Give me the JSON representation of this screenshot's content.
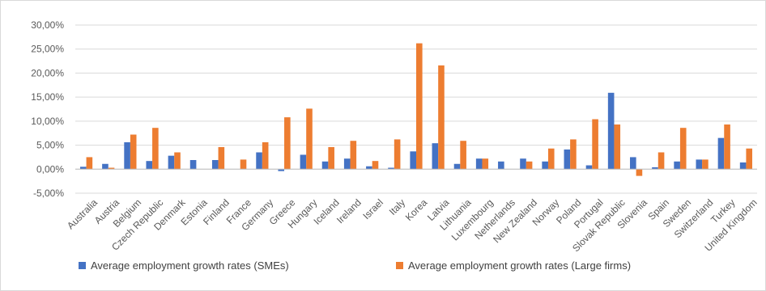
{
  "chart_data": {
    "type": "bar",
    "title": "",
    "xlabel": "",
    "ylabel": "",
    "ylim": [
      -5,
      30
    ],
    "y_ticks": [
      "-5,00%",
      "0,00%",
      "5,00%",
      "10,00%",
      "15,00%",
      "20,00%",
      "25,00%",
      "30,00%"
    ],
    "grid": true,
    "legend_position": "bottom",
    "categories": [
      "Australia",
      "Austria",
      "Belgium",
      "Czech Republic",
      "Denmark",
      "Estonia",
      "Finland",
      "France",
      "Germany",
      "Greece",
      "Hungary",
      "Iceland",
      "Ireland",
      "Israel",
      "Italy",
      "Korea",
      "Latvia",
      "Lithuania",
      "Luxembourg",
      "Netherlands",
      "New Zealand",
      "Norway",
      "Poland",
      "Portugal",
      "Slovak Republic",
      "Slovenia",
      "Spain",
      "Sweden",
      "Switzerland",
      "Turkey",
      "United Kingdom"
    ],
    "series": [
      {
        "name": "Average employment growth rates (SMEs)",
        "color": "#4472c4",
        "values": [
          0.5,
          1.1,
          5.6,
          1.7,
          2.8,
          1.9,
          1.9,
          0.0,
          3.5,
          -0.4,
          3.0,
          1.6,
          2.2,
          0.6,
          0.3,
          3.7,
          5.4,
          1.1,
          2.2,
          1.6,
          2.2,
          1.6,
          4.1,
          0.8,
          15.9,
          2.5,
          0.4,
          1.6,
          2.0,
          6.5,
          1.4
        ]
      },
      {
        "name": "Average employment growth rates (Large firms)",
        "color": "#ed7d31",
        "values": [
          2.5,
          0.3,
          7.2,
          8.6,
          3.5,
          0.0,
          4.6,
          2.0,
          5.6,
          10.8,
          12.6,
          4.6,
          5.9,
          1.7,
          6.2,
          26.2,
          21.6,
          5.9,
          2.2,
          0.0,
          1.6,
          4.3,
          6.2,
          10.4,
          9.3,
          -1.4,
          3.5,
          8.6,
          2.0,
          9.3,
          4.3
        ]
      }
    ]
  }
}
